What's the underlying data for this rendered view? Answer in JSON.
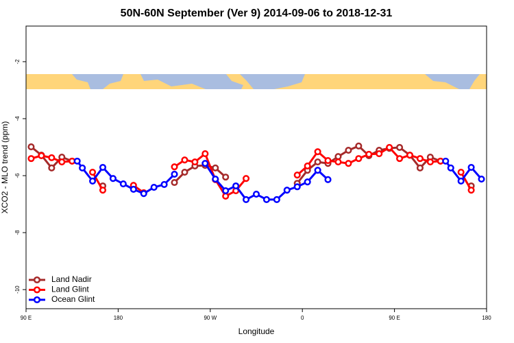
{
  "chart_data": {
    "type": "line",
    "title": "50N-60N September (Ver 9)   2014-09-06 to 2018-12-31",
    "x_label": "Longitude",
    "y_label": "XCO2 - MLO trend (ppm)",
    "xlim": [
      90,
      540
    ],
    "xticks": [
      {
        "value": 90,
        "label": "90 E"
      },
      180,
      {
        "value": 270,
        "label": "90 W"
      },
      {
        "value": 360,
        "label": "0"
      },
      {
        "value": 450,
        "label": "90 E"
      },
      {
        "value": 540,
        "label": "180"
      }
    ],
    "ylim": [
      -10.67,
      -0.75
    ],
    "yticks": [
      -2,
      -4,
      -6,
      -8,
      -10
    ],
    "legend": "bottom-left",
    "series": [
      {
        "name": "Land Nadir",
        "color": "#a52a2a",
        "x": [
          95,
          105,
          115,
          125,
          135,
          145,
          165,
          175,
          235,
          245,
          255,
          265,
          275,
          285,
          295,
          355,
          365,
          375,
          385,
          395,
          405,
          415,
          425,
          435,
          445,
          455,
          465,
          475,
          485,
          495,
          505,
          525
        ],
        "values": [
          -4.99,
          -5.28,
          -5.73,
          -5.35,
          -5.49,
          null,
          -6.36,
          null,
          -6.24,
          -5.88,
          -5.66,
          -5.64,
          -5.73,
          -6.05,
          null,
          -6.27,
          -5.81,
          -5.52,
          -5.57,
          -5.33,
          -5.11,
          -4.96,
          -5.3,
          -5.11,
          -5.04,
          -5.01,
          -5.28,
          -5.73,
          -5.35,
          -5.49,
          null,
          -6.36
        ]
      },
      {
        "name": "Land Glint",
        "color": "#ff0000",
        "x": [
          95,
          105,
          115,
          125,
          135,
          145,
          155,
          165,
          175,
          195,
          205,
          215,
          235,
          245,
          255,
          265,
          275,
          285,
          295,
          305,
          315,
          355,
          365,
          375,
          385,
          395,
          405,
          415,
          425,
          435,
          445,
          455,
          465,
          475,
          485,
          495,
          505,
          515,
          525
        ],
        "values": [
          -5.4,
          -5.3,
          -5.37,
          -5.52,
          -5.49,
          null,
          -5.88,
          -6.51,
          null,
          -6.34,
          -6.6,
          null,
          -5.69,
          -5.45,
          -5.52,
          -5.23,
          -6.14,
          -6.72,
          -6.53,
          -6.1,
          null,
          -5.98,
          -5.66,
          -5.16,
          -5.47,
          -5.52,
          -5.57,
          -5.4,
          -5.25,
          -5.23,
          -5.01,
          -5.4,
          -5.28,
          -5.4,
          -5.52,
          -5.49,
          null,
          -5.88,
          -6.51
        ]
      },
      {
        "name": "Ocean Glint",
        "color": "#0000ff",
        "x": [
          140,
          145,
          155,
          165,
          175,
          185,
          195,
          205,
          215,
          225,
          235,
          245,
          265,
          275,
          285,
          295,
          305,
          315,
          325,
          335,
          345,
          355,
          365,
          375,
          385,
          395,
          500,
          505,
          515,
          525,
          535
        ],
        "values": [
          -5.49,
          -5.73,
          -6.19,
          -5.71,
          -6.1,
          -6.29,
          -6.48,
          -6.63,
          -6.41,
          -6.31,
          -5.95,
          null,
          -5.57,
          -6.12,
          -6.53,
          -6.36,
          -6.84,
          -6.65,
          -6.84,
          -6.84,
          -6.51,
          -6.39,
          -6.22,
          -5.81,
          -6.14,
          null,
          -5.49,
          -5.73,
          -6.19,
          -5.71,
          -6.12
        ]
      }
    ]
  }
}
